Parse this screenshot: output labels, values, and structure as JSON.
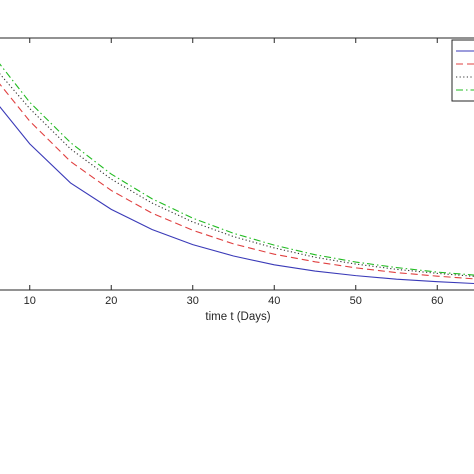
{
  "chart_data": {
    "type": "line",
    "title": "",
    "xlabel": "time t (Days)",
    "ylabel": "",
    "xlim": [
      5,
      65
    ],
    "ylim": [
      0,
      1
    ],
    "x_ticks": [
      10,
      20,
      30,
      40,
      50,
      60
    ],
    "grid": false,
    "legend_position": "top-right",
    "series": [
      {
        "color": "#3a3ab8",
        "dash": "solid",
        "x": [
          6,
          10,
          15,
          20,
          25,
          30,
          35,
          40,
          45,
          50,
          55,
          60,
          65
        ],
        "values": [
          0.74,
          0.58,
          0.425,
          0.32,
          0.24,
          0.18,
          0.135,
          0.1,
          0.075,
          0.057,
          0.043,
          0.033,
          0.025
        ]
      },
      {
        "color": "#e04040",
        "dash": "dashed",
        "x": [
          6,
          10,
          15,
          20,
          25,
          30,
          35,
          40,
          45,
          50,
          55,
          60,
          65
        ],
        "values": [
          0.83,
          0.67,
          0.51,
          0.395,
          0.305,
          0.237,
          0.183,
          0.142,
          0.112,
          0.088,
          0.069,
          0.055,
          0.043
        ]
      },
      {
        "color": "#333333",
        "dash": "dotted",
        "x": [
          6,
          10,
          15,
          20,
          25,
          30,
          35,
          40,
          45,
          50,
          55,
          60,
          65
        ],
        "values": [
          0.87,
          0.72,
          0.56,
          0.44,
          0.345,
          0.27,
          0.212,
          0.167,
          0.13,
          0.103,
          0.082,
          0.066,
          0.053
        ]
      },
      {
        "color": "#22bb22",
        "dash": "dashdot",
        "x": [
          6,
          10,
          15,
          20,
          25,
          30,
          35,
          40,
          45,
          50,
          55,
          60,
          65
        ],
        "values": [
          0.91,
          0.745,
          0.585,
          0.46,
          0.362,
          0.285,
          0.225,
          0.178,
          0.14,
          0.111,
          0.089,
          0.071,
          0.058
        ]
      }
    ]
  }
}
